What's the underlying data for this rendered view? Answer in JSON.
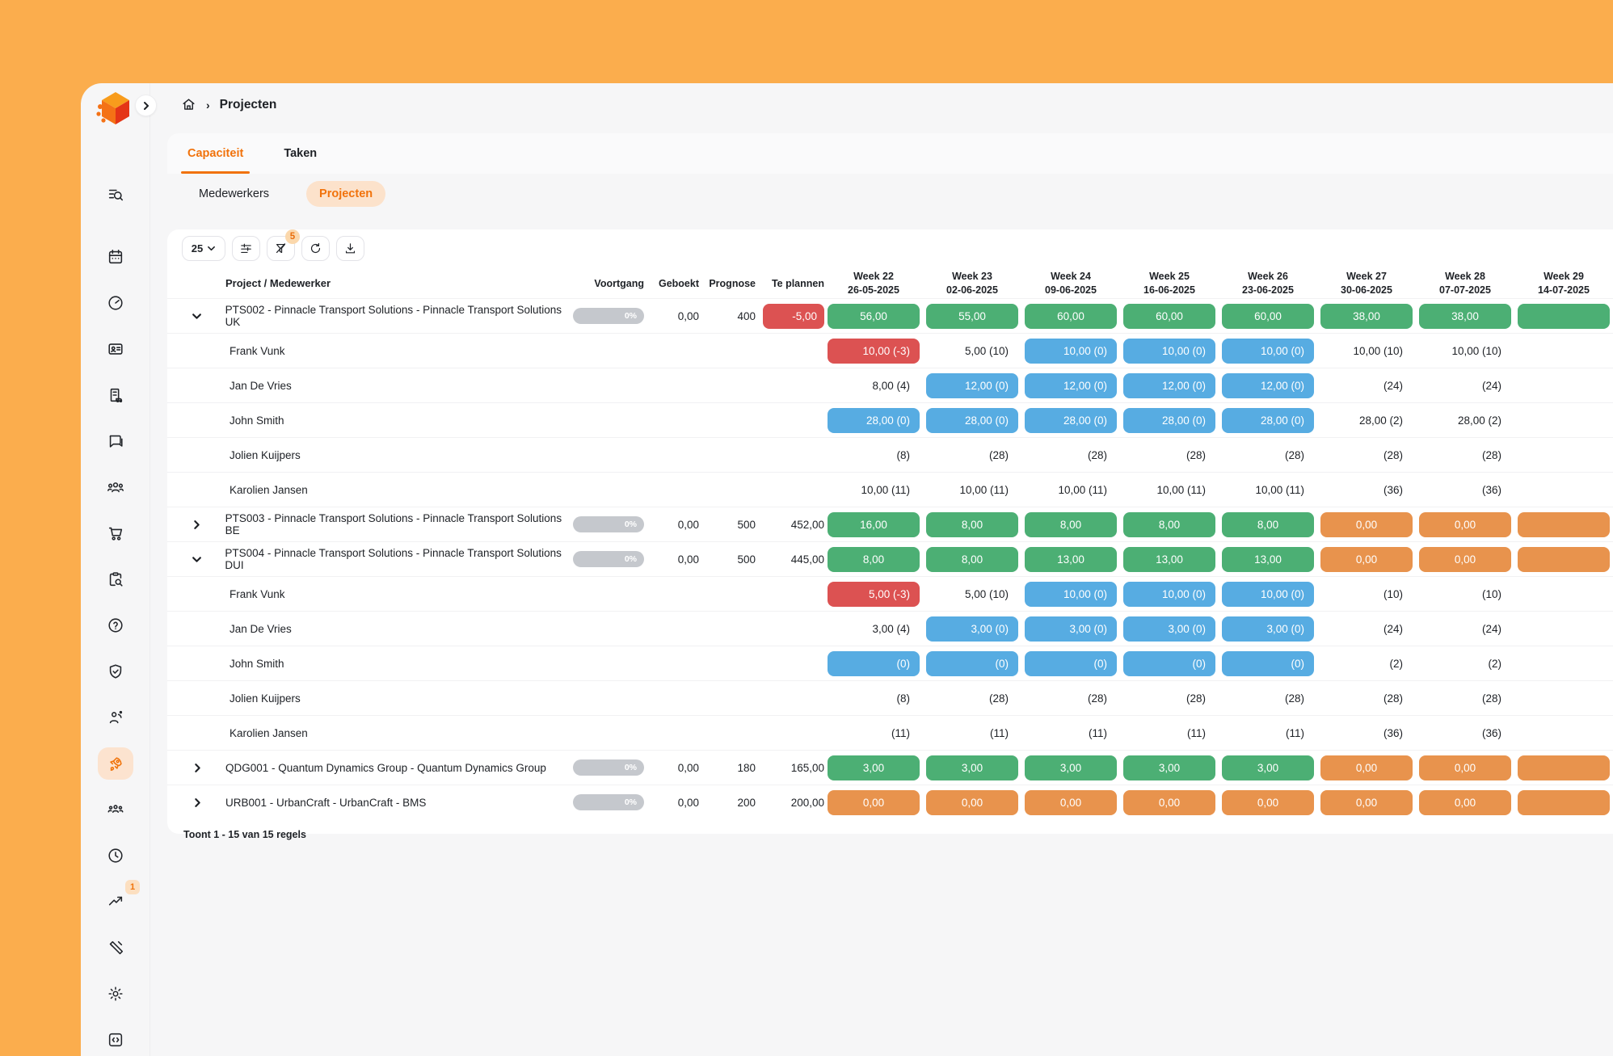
{
  "breadcrumb": {
    "home_icon": "home-icon",
    "separator": "›",
    "title": "Projecten"
  },
  "window_controls": {
    "sidebar_collapse_icon": "chevron-right-icon"
  },
  "tabs": [
    {
      "label": "Capaciteit",
      "active": true
    },
    {
      "label": "Taken",
      "active": false
    }
  ],
  "subtabs": [
    {
      "label": "Medewerkers",
      "active": false
    },
    {
      "label": "Projecten",
      "active": true
    }
  ],
  "toolbar": {
    "page_size_value": "25",
    "buttons": [
      "column-settings",
      "filter-clear",
      "refresh",
      "download"
    ],
    "filter_badge_count": "5"
  },
  "sidebar": {
    "active_item": "rocket",
    "trend_badge_count": "1",
    "icons": [
      "list-search",
      "calendar",
      "gauge",
      "id-card",
      "company",
      "chat",
      "group",
      "cart",
      "clipboard-search",
      "help",
      "shield-check",
      "person-wave",
      "rocket",
      "team",
      "clock",
      "trend-up",
      "tools",
      "settings",
      "code-box"
    ]
  },
  "table": {
    "columns": [
      "Project / Medewerker",
      "Voortgang",
      "Geboekt",
      "Prognose",
      "Te plannen"
    ],
    "weeks": [
      {
        "label": "Week 22",
        "date": "26-05-2025"
      },
      {
        "label": "Week 23",
        "date": "02-06-2025"
      },
      {
        "label": "Week 24",
        "date": "09-06-2025"
      },
      {
        "label": "Week 25",
        "date": "16-06-2025"
      },
      {
        "label": "Week 26",
        "date": "23-06-2025"
      },
      {
        "label": "Week 27",
        "date": "30-06-2025"
      },
      {
        "label": "Week 28",
        "date": "07-07-2025"
      },
      {
        "label": "Week 29",
        "date": "14-07-2025"
      }
    ],
    "rows": [
      {
        "type": "project",
        "expanded": true,
        "name": "PTS002 - Pinnacle Transport Solutions - Pinnacle Transport Solutions UK",
        "voortgang": "0%",
        "geboekt": "0,00",
        "prognose": "400",
        "te_plannen": {
          "text": "-5,00",
          "style": "red"
        },
        "cells": [
          {
            "text": "56,00",
            "style": "green"
          },
          {
            "text": "55,00",
            "style": "green"
          },
          {
            "text": "60,00",
            "style": "green"
          },
          {
            "text": "60,00",
            "style": "green"
          },
          {
            "text": "60,00",
            "style": "green"
          },
          {
            "text": "38,00",
            "style": "green"
          },
          {
            "text": "38,00",
            "style": "green"
          },
          {
            "text": "",
            "style": "green"
          }
        ]
      },
      {
        "type": "member",
        "name": "Frank Vunk",
        "cells": [
          {
            "text": "10,00  (-3)",
            "style": "red"
          },
          {
            "text": "5,00  (10)",
            "style": "plain"
          },
          {
            "text": "10,00  (0)",
            "style": "blue"
          },
          {
            "text": "10,00  (0)",
            "style": "blue"
          },
          {
            "text": "10,00  (0)",
            "style": "blue"
          },
          {
            "text": "10,00  (10)",
            "style": "plain"
          },
          {
            "text": "10,00  (10)",
            "style": "plain"
          },
          {
            "text": "",
            "style": "empty"
          }
        ]
      },
      {
        "type": "member",
        "name": "Jan De Vries",
        "cells": [
          {
            "text": "8,00  (4)",
            "style": "plain"
          },
          {
            "text": "12,00  (0)",
            "style": "blue"
          },
          {
            "text": "12,00  (0)",
            "style": "blue"
          },
          {
            "text": "12,00  (0)",
            "style": "blue"
          },
          {
            "text": "12,00  (0)",
            "style": "blue"
          },
          {
            "text": "(24)",
            "style": "plain"
          },
          {
            "text": "(24)",
            "style": "plain"
          },
          {
            "text": "",
            "style": "empty"
          }
        ]
      },
      {
        "type": "member",
        "name": "John Smith",
        "cells": [
          {
            "text": "28,00  (0)",
            "style": "blue"
          },
          {
            "text": "28,00  (0)",
            "style": "blue"
          },
          {
            "text": "28,00  (0)",
            "style": "blue"
          },
          {
            "text": "28,00  (0)",
            "style": "blue"
          },
          {
            "text": "28,00  (0)",
            "style": "blue"
          },
          {
            "text": "28,00  (2)",
            "style": "plain"
          },
          {
            "text": "28,00  (2)",
            "style": "plain"
          },
          {
            "text": "",
            "style": "empty"
          }
        ]
      },
      {
        "type": "member",
        "name": "Jolien Kuijpers",
        "cells": [
          {
            "text": "(8)",
            "style": "plain"
          },
          {
            "text": "(28)",
            "style": "plain"
          },
          {
            "text": "(28)",
            "style": "plain"
          },
          {
            "text": "(28)",
            "style": "plain"
          },
          {
            "text": "(28)",
            "style": "plain"
          },
          {
            "text": "(28)",
            "style": "plain"
          },
          {
            "text": "(28)",
            "style": "plain"
          },
          {
            "text": "",
            "style": "empty"
          }
        ]
      },
      {
        "type": "member",
        "name": "Karolien Jansen",
        "cells": [
          {
            "text": "10,00  (11)",
            "style": "plain"
          },
          {
            "text": "10,00  (11)",
            "style": "plain"
          },
          {
            "text": "10,00  (11)",
            "style": "plain"
          },
          {
            "text": "10,00  (11)",
            "style": "plain"
          },
          {
            "text": "10,00  (11)",
            "style": "plain"
          },
          {
            "text": "(36)",
            "style": "plain"
          },
          {
            "text": "(36)",
            "style": "plain"
          },
          {
            "text": "",
            "style": "empty"
          }
        ]
      },
      {
        "type": "project",
        "expanded": false,
        "name": "PTS003 - Pinnacle Transport Solutions - Pinnacle Transport Solutions BE",
        "voortgang": "0%",
        "geboekt": "0,00",
        "prognose": "500",
        "te_plannen": {
          "text": "452,00",
          "style": "plain"
        },
        "cells": [
          {
            "text": "16,00",
            "style": "green"
          },
          {
            "text": "8,00",
            "style": "green"
          },
          {
            "text": "8,00",
            "style": "green"
          },
          {
            "text": "8,00",
            "style": "green"
          },
          {
            "text": "8,00",
            "style": "green"
          },
          {
            "text": "0,00",
            "style": "orange"
          },
          {
            "text": "0,00",
            "style": "orange"
          },
          {
            "text": "",
            "style": "orange"
          }
        ]
      },
      {
        "type": "project",
        "expanded": true,
        "name": "PTS004 - Pinnacle Transport Solutions - Pinnacle Transport Solutions DUI",
        "voortgang": "0%",
        "geboekt": "0,00",
        "prognose": "500",
        "te_plannen": {
          "text": "445,00",
          "style": "plain"
        },
        "cells": [
          {
            "text": "8,00",
            "style": "green"
          },
          {
            "text": "8,00",
            "style": "green"
          },
          {
            "text": "13,00",
            "style": "green"
          },
          {
            "text": "13,00",
            "style": "green"
          },
          {
            "text": "13,00",
            "style": "green"
          },
          {
            "text": "0,00",
            "style": "orange"
          },
          {
            "text": "0,00",
            "style": "orange"
          },
          {
            "text": "",
            "style": "orange"
          }
        ]
      },
      {
        "type": "member",
        "name": "Frank Vunk",
        "cells": [
          {
            "text": "5,00  (-3)",
            "style": "red"
          },
          {
            "text": "5,00  (10)",
            "style": "plain"
          },
          {
            "text": "10,00  (0)",
            "style": "blue"
          },
          {
            "text": "10,00  (0)",
            "style": "blue"
          },
          {
            "text": "10,00  (0)",
            "style": "blue"
          },
          {
            "text": "(10)",
            "style": "plain"
          },
          {
            "text": "(10)",
            "style": "plain"
          },
          {
            "text": "",
            "style": "empty"
          }
        ]
      },
      {
        "type": "member",
        "name": "Jan De Vries",
        "cells": [
          {
            "text": "3,00  (4)",
            "style": "plain"
          },
          {
            "text": "3,00  (0)",
            "style": "blue"
          },
          {
            "text": "3,00  (0)",
            "style": "blue"
          },
          {
            "text": "3,00  (0)",
            "style": "blue"
          },
          {
            "text": "3,00  (0)",
            "style": "blue"
          },
          {
            "text": "(24)",
            "style": "plain"
          },
          {
            "text": "(24)",
            "style": "plain"
          },
          {
            "text": "",
            "style": "empty"
          }
        ]
      },
      {
        "type": "member",
        "name": "John Smith",
        "cells": [
          {
            "text": "(0)",
            "style": "blue"
          },
          {
            "text": "(0)",
            "style": "blue"
          },
          {
            "text": "(0)",
            "style": "blue"
          },
          {
            "text": "(0)",
            "style": "blue"
          },
          {
            "text": "(0)",
            "style": "blue"
          },
          {
            "text": "(2)",
            "style": "plain"
          },
          {
            "text": "(2)",
            "style": "plain"
          },
          {
            "text": "",
            "style": "empty"
          }
        ]
      },
      {
        "type": "member",
        "name": "Jolien Kuijpers",
        "cells": [
          {
            "text": "(8)",
            "style": "plain"
          },
          {
            "text": "(28)",
            "style": "plain"
          },
          {
            "text": "(28)",
            "style": "plain"
          },
          {
            "text": "(28)",
            "style": "plain"
          },
          {
            "text": "(28)",
            "style": "plain"
          },
          {
            "text": "(28)",
            "style": "plain"
          },
          {
            "text": "(28)",
            "style": "plain"
          },
          {
            "text": "",
            "style": "empty"
          }
        ]
      },
      {
        "type": "member",
        "name": "Karolien Jansen",
        "cells": [
          {
            "text": "(11)",
            "style": "plain"
          },
          {
            "text": "(11)",
            "style": "plain"
          },
          {
            "text": "(11)",
            "style": "plain"
          },
          {
            "text": "(11)",
            "style": "plain"
          },
          {
            "text": "(11)",
            "style": "plain"
          },
          {
            "text": "(36)",
            "style": "plain"
          },
          {
            "text": "(36)",
            "style": "plain"
          },
          {
            "text": "",
            "style": "empty"
          }
        ]
      },
      {
        "type": "project",
        "expanded": false,
        "name": "QDG001 - Quantum Dynamics Group - Quantum Dynamics Group",
        "voortgang": "0%",
        "geboekt": "0,00",
        "prognose": "180",
        "te_plannen": {
          "text": "165,00",
          "style": "plain"
        },
        "cells": [
          {
            "text": "3,00",
            "style": "green"
          },
          {
            "text": "3,00",
            "style": "green"
          },
          {
            "text": "3,00",
            "style": "green"
          },
          {
            "text": "3,00",
            "style": "green"
          },
          {
            "text": "3,00",
            "style": "green"
          },
          {
            "text": "0,00",
            "style": "orange"
          },
          {
            "text": "0,00",
            "style": "orange"
          },
          {
            "text": "",
            "style": "orange"
          }
        ]
      },
      {
        "type": "project",
        "expanded": false,
        "name": "URB001 - UrbanCraft - UrbanCraft - BMS",
        "voortgang": "0%",
        "geboekt": "0,00",
        "prognose": "200",
        "te_plannen": {
          "text": "200,00",
          "style": "plain"
        },
        "cells": [
          {
            "text": "0,00",
            "style": "orange"
          },
          {
            "text": "0,00",
            "style": "orange"
          },
          {
            "text": "0,00",
            "style": "orange"
          },
          {
            "text": "0,00",
            "style": "orange"
          },
          {
            "text": "0,00",
            "style": "orange"
          },
          {
            "text": "0,00",
            "style": "orange"
          },
          {
            "text": "0,00",
            "style": "orange"
          },
          {
            "text": "",
            "style": "orange"
          }
        ]
      }
    ],
    "footer": "Toont 1 - 15 van 15 regels"
  },
  "colors": {
    "page_background": "#FBAD4D",
    "accent_orange": "#F1720B",
    "accent_light": "#FCE2CB",
    "cell_green": "#4CAF74",
    "cell_blue": "#57ACE2",
    "cell_red": "#DC5252",
    "cell_orange": "#E8934D",
    "progress_gray": "#C5C8CD"
  }
}
